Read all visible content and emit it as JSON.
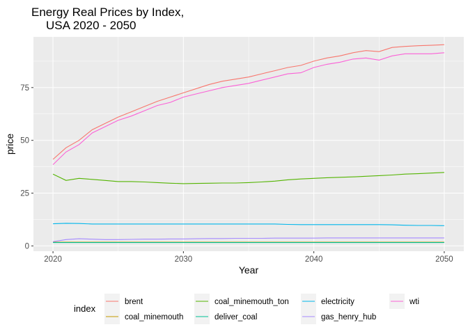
{
  "chart_data": {
    "type": "line",
    "title": [
      "Energy Real Prices by Index,",
      "USA 2020 - 2050"
    ],
    "xlabel": "Year",
    "ylabel": "price",
    "xlim": [
      2018.5,
      2051.5
    ],
    "ylim": [
      -2.5,
      99
    ],
    "xticks": [
      2020,
      2030,
      2040,
      2050
    ],
    "yticks": [
      0,
      25,
      50,
      75
    ],
    "grid": true,
    "legend_title": "index",
    "legend_position": "bottom",
    "x": [
      2020,
      2021,
      2022,
      2023,
      2024,
      2025,
      2026,
      2027,
      2028,
      2029,
      2030,
      2031,
      2032,
      2033,
      2034,
      2035,
      2036,
      2037,
      2038,
      2039,
      2040,
      2041,
      2042,
      2043,
      2044,
      2045,
      2046,
      2047,
      2048,
      2049,
      2050
    ],
    "series": [
      {
        "name": "brent",
        "color": "#F8766D",
        "values": [
          41,
          46.5,
          50,
          55,
          58,
          61,
          63.5,
          66,
          68.5,
          70.5,
          72.5,
          74.5,
          76.5,
          78,
          79,
          80,
          81.5,
          83,
          84.5,
          85.5,
          87.5,
          89,
          90,
          91.5,
          92.5,
          92,
          94,
          94.5,
          94.8,
          95,
          95.3
        ]
      },
      {
        "name": "coal_minemouth",
        "color": "#C49A00",
        "values": [
          1.8,
          1.8,
          1.8,
          1.8,
          1.8,
          1.8,
          1.8,
          1.8,
          1.8,
          1.8,
          1.8,
          1.8,
          1.8,
          1.8,
          1.8,
          1.8,
          1.8,
          1.8,
          1.8,
          1.8,
          1.8,
          1.8,
          1.8,
          1.8,
          1.8,
          1.8,
          1.8,
          1.8,
          1.8,
          1.8,
          1.8
        ]
      },
      {
        "name": "coal_minemouth_ton",
        "color": "#53B400",
        "values": [
          34,
          31,
          32,
          31.5,
          31,
          30.5,
          30.5,
          30.3,
          30,
          29.7,
          29.5,
          29.6,
          29.7,
          29.8,
          29.8,
          30,
          30.3,
          30.7,
          31.3,
          31.7,
          32,
          32.3,
          32.5,
          32.7,
          33,
          33.3,
          33.6,
          34,
          34.2,
          34.5,
          34.8
        ]
      },
      {
        "name": "deliver_coal",
        "color": "#00C094",
        "values": [
          1.6,
          1.6,
          1.6,
          1.6,
          1.6,
          1.6,
          1.6,
          1.6,
          1.6,
          1.6,
          1.6,
          1.6,
          1.6,
          1.6,
          1.6,
          1.6,
          1.6,
          1.6,
          1.6,
          1.6,
          1.6,
          1.6,
          1.6,
          1.6,
          1.6,
          1.6,
          1.6,
          1.6,
          1.6,
          1.6,
          1.6
        ]
      },
      {
        "name": "electricity",
        "color": "#00B6EB",
        "values": [
          10.5,
          10.7,
          10.6,
          10.4,
          10.4,
          10.4,
          10.4,
          10.4,
          10.4,
          10.4,
          10.4,
          10.4,
          10.4,
          10.4,
          10.4,
          10.4,
          10.4,
          10.4,
          10.2,
          10.1,
          10.1,
          10.1,
          10.1,
          10.1,
          10.1,
          10.1,
          10,
          9.8,
          9.7,
          9.7,
          9.6
        ]
      },
      {
        "name": "gas_henry_hub",
        "color": "#A58AFF",
        "values": [
          2,
          3,
          3.4,
          3.2,
          3,
          3,
          3.1,
          3.2,
          3.2,
          3.3,
          3.3,
          3.4,
          3.5,
          3.5,
          3.6,
          3.6,
          3.6,
          3.7,
          3.7,
          3.7,
          3.7,
          3.8,
          3.8,
          3.8,
          3.8,
          3.8,
          3.8,
          3.8,
          3.8,
          3.8,
          3.8
        ]
      },
      {
        "name": "wti",
        "color": "#FB61D7",
        "values": [
          38.5,
          44.5,
          48,
          53.5,
          56.5,
          59.5,
          61.5,
          64,
          66.5,
          68,
          70.5,
          72,
          73.5,
          75,
          76,
          77,
          78.5,
          80,
          81.5,
          82,
          84.5,
          86,
          87,
          88.5,
          89,
          88,
          90,
          91,
          91,
          91,
          91.5
        ]
      }
    ]
  }
}
